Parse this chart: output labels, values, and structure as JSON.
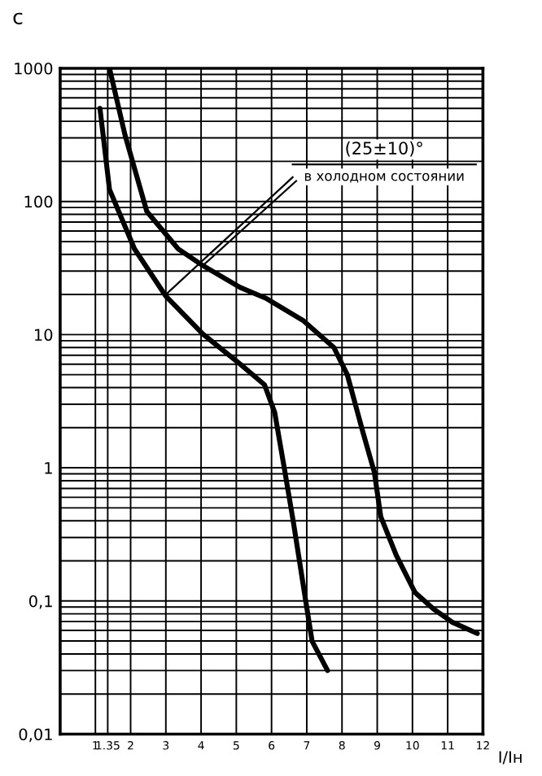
{
  "chart_data": {
    "type": "line",
    "xlabel": "I/Iн",
    "ylabel": "c",
    "log": "y",
    "grid": true,
    "marker": "none",
    "line_style": "solid",
    "xlim": [
      0,
      12
    ],
    "xticks": [
      1,
      {
        "value": 1.35,
        "label": "1.35"
      },
      2,
      3,
      4,
      5,
      6,
      7,
      8,
      9,
      10,
      11,
      12
    ],
    "ylim": [
      0.01,
      1000
    ],
    "yticks": [
      {
        "value": 0.01,
        "label": "0,01"
      },
      {
        "value": 0.02,
        "label": null
      },
      {
        "value": 0.03,
        "label": null
      },
      {
        "value": 0.04,
        "label": null
      },
      {
        "value": 0.05,
        "label": null
      },
      {
        "value": 0.06,
        "label": null
      },
      {
        "value": 0.07,
        "label": null
      },
      {
        "value": 0.08,
        "label": null
      },
      {
        "value": 0.09,
        "label": null
      },
      {
        "value": 0.1,
        "label": "0,1"
      },
      {
        "value": 0.2,
        "label": null
      },
      {
        "value": 0.3,
        "label": null
      },
      {
        "value": 0.4,
        "label": null
      },
      {
        "value": 0.5,
        "label": null
      },
      {
        "value": 0.6,
        "label": null
      },
      {
        "value": 0.7,
        "label": null
      },
      {
        "value": 0.8,
        "label": null
      },
      {
        "value": 0.9,
        "label": null
      },
      1,
      {
        "value": 2,
        "label": null
      },
      {
        "value": 3,
        "label": null
      },
      {
        "value": 4,
        "label": null
      },
      {
        "value": 5,
        "label": null
      },
      {
        "value": 6,
        "label": null
      },
      {
        "value": 7,
        "label": null
      },
      {
        "value": 8,
        "label": null
      },
      {
        "value": 9,
        "label": null
      },
      10,
      {
        "value": 20,
        "label": null
      },
      {
        "value": 30,
        "label": null
      },
      {
        "value": 40,
        "label": null
      },
      {
        "value": 50,
        "label": null
      },
      {
        "value": 60,
        "label": null
      },
      {
        "value": 70,
        "label": null
      },
      {
        "value": 80,
        "label": null
      },
      {
        "value": 90,
        "label": null
      },
      100,
      {
        "value": 200,
        "label": null
      },
      {
        "value": 300,
        "label": null
      },
      {
        "value": 400,
        "label": null
      },
      {
        "value": 500,
        "label": null
      },
      {
        "value": 600,
        "label": null
      },
      {
        "value": 700,
        "label": null
      },
      {
        "value": 800,
        "label": null
      },
      {
        "value": 900,
        "label": null
      },
      1000
    ],
    "series": [
      {
        "color": "#000000",
        "x": [
          1.13,
          1.4,
          2.11,
          2.99,
          4.05,
          5.11,
          5.8,
          6.09,
          6.36,
          6.62,
          6.97,
          7.15,
          7.59
        ],
        "values": [
          500,
          123,
          44,
          19.6,
          10.1,
          6.0,
          4.2,
          2.6,
          1.0,
          0.39,
          0.1,
          0.05,
          0.03
        ]
      },
      {
        "color": "#000000",
        "x": [
          1.4,
          1.84,
          2.46,
          3.35,
          4.05,
          5.11,
          5.83,
          6.89,
          7.77,
          8.15,
          8.57,
          8.92,
          9.1,
          9.54,
          10.07,
          10.6,
          11.14,
          11.84
        ],
        "values": [
          1000,
          316,
          84,
          44,
          33,
          22.6,
          18.8,
          12.8,
          8.0,
          5.0,
          1.95,
          0.92,
          0.43,
          0.22,
          0.116,
          0.087,
          0.069,
          0.057
        ]
      }
    ],
    "annotations": [
      "(25±10)°",
      {
        "text": "в холодном состоянии",
        "x": 3,
        "y": 20
      }
    ]
  }
}
